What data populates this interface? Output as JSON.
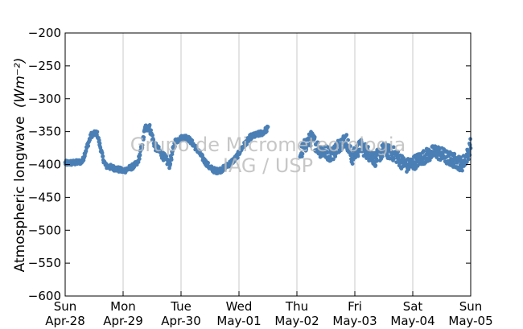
{
  "chart_data": {
    "type": "scatter",
    "title": "",
    "xlabel": "",
    "ylabel": "Atmospheric longwave",
    "ylabel_unit": "(Wm⁻²)",
    "ylim": [
      -600,
      -200
    ],
    "yticks": [
      -200,
      -250,
      -300,
      -350,
      -400,
      -450,
      -500,
      -550,
      -600
    ],
    "ytick_labels": [
      "−200",
      "−250",
      "−300",
      "−350",
      "−400",
      "−450",
      "−500",
      "−550",
      "−600"
    ],
    "xlim": [
      "2014-04-28",
      "2014-05-05"
    ],
    "xticks": [
      {
        "day": "Sun",
        "date": "Apr-28"
      },
      {
        "day": "Mon",
        "date": "Apr-29"
      },
      {
        "day": "Tue",
        "date": "Apr-30"
      },
      {
        "day": "Wed",
        "date": "May-01"
      },
      {
        "day": "Thu",
        "date": "May-02"
      },
      {
        "day": "Fri",
        "date": "May-03"
      },
      {
        "day": "Sat",
        "date": "May-04"
      },
      {
        "day": "Sun",
        "date": "May-05"
      }
    ],
    "grid": "vertical",
    "marker_color": "#4a7fb5",
    "watermark": [
      "Grupo de Micrometeorologia",
      "IAG / USP"
    ],
    "series_profile": [
      [
        0.0,
        -398
      ],
      [
        0.2,
        -397
      ],
      [
        0.3,
        -395
      ],
      [
        0.35,
        -380
      ],
      [
        0.45,
        -355
      ],
      [
        0.55,
        -352
      ],
      [
        0.65,
        -390
      ],
      [
        0.7,
        -402
      ],
      [
        0.9,
        -407
      ],
      [
        1.0,
        -410
      ],
      [
        1.15,
        -404
      ],
      [
        1.25,
        -398
      ],
      [
        1.32,
        -375
      ],
      [
        1.38,
        -345
      ],
      [
        1.45,
        -342
      ],
      [
        1.55,
        -372
      ],
      [
        1.7,
        -388
      ],
      [
        1.8,
        -400
      ],
      [
        1.9,
        -365
      ],
      [
        2.0,
        -360
      ],
      [
        2.1,
        -358
      ],
      [
        2.2,
        -368
      ],
      [
        2.3,
        -380
      ],
      [
        2.4,
        -394
      ],
      [
        2.5,
        -405
      ],
      [
        2.6,
        -410
      ],
      [
        2.7,
        -408
      ],
      [
        2.85,
        -398
      ],
      [
        2.95,
        -390
      ],
      [
        3.05,
        -375
      ],
      [
        3.2,
        -358
      ],
      [
        3.4,
        -352
      ],
      [
        3.5,
        -345
      ],
      [
        3.55,
        null
      ],
      [
        4.0,
        null
      ],
      [
        4.05,
        -385
      ],
      [
        4.15,
        -370
      ],
      [
        4.25,
        -360
      ],
      [
        4.4,
        -378
      ],
      [
        4.6,
        -385
      ],
      [
        4.75,
        -368
      ],
      [
        4.85,
        -362
      ],
      [
        4.95,
        -390
      ],
      [
        5.1,
        -372
      ],
      [
        5.2,
        -380
      ],
      [
        5.35,
        -392
      ],
      [
        5.5,
        -378
      ],
      [
        5.7,
        -385
      ],
      [
        5.8,
        -395
      ],
      [
        5.9,
        -402
      ],
      [
        6.0,
        -398
      ],
      [
        6.2,
        -388
      ],
      [
        6.4,
        -380
      ],
      [
        6.6,
        -390
      ],
      [
        6.75,
        -395
      ],
      [
        6.85,
        -400
      ],
      [
        6.95,
        -385
      ],
      [
        7.0,
        -370
      ]
    ]
  }
}
